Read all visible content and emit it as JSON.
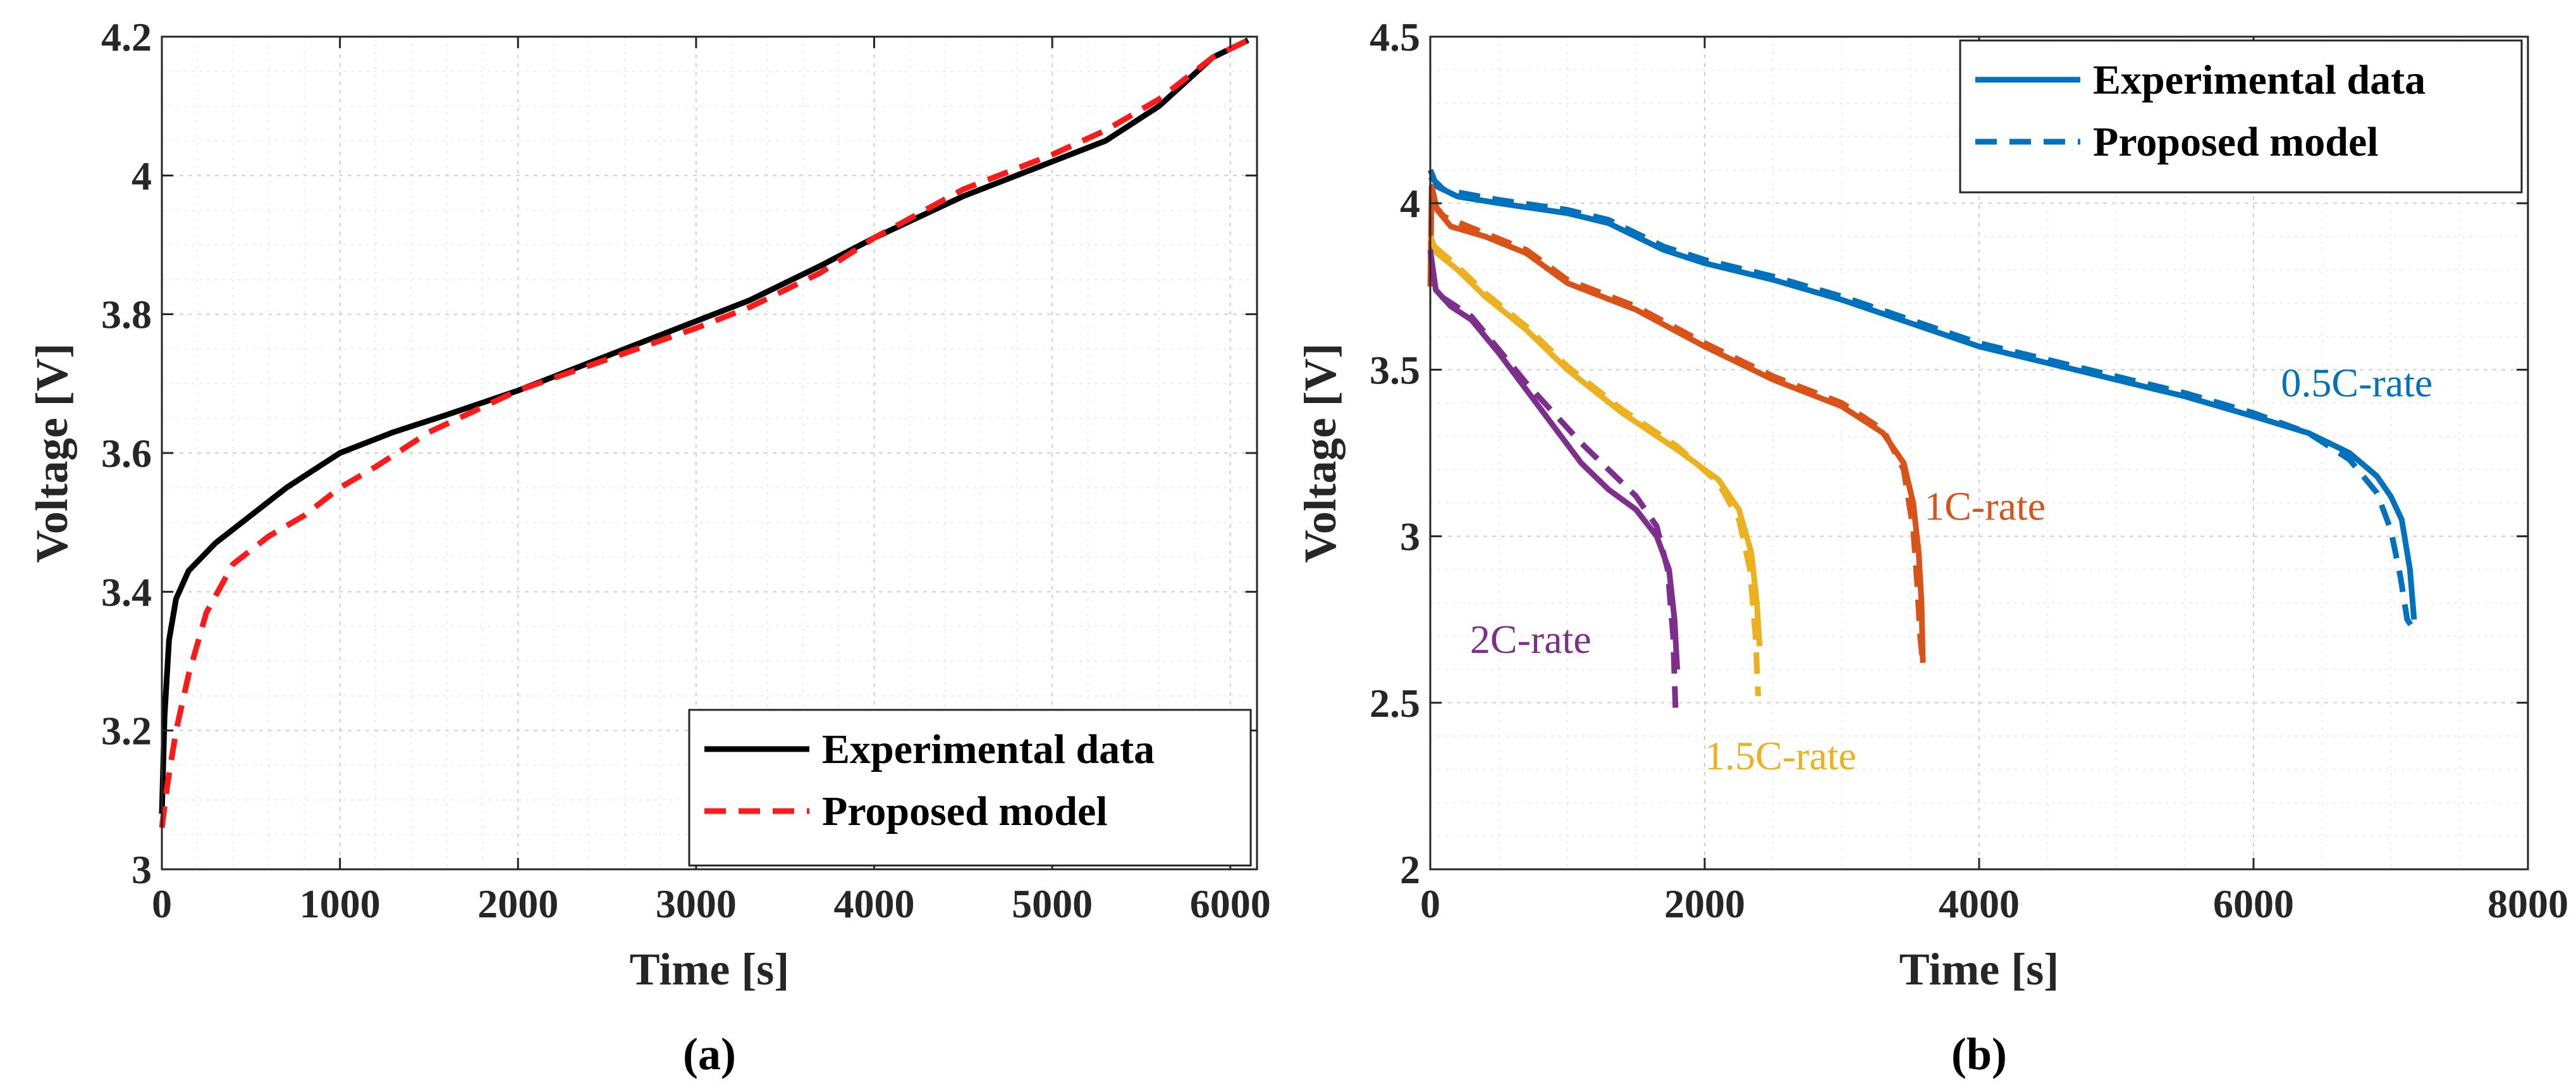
{
  "chart_data": [
    {
      "type": "line",
      "caption": "(a)",
      "xlabel": "Time [s]",
      "ylabel": "Voltage [V]",
      "xlim": [
        0,
        6150
      ],
      "ylim": [
        3.0,
        4.2
      ],
      "xticks": [
        0,
        1000,
        2000,
        3000,
        4000,
        5000,
        6000
      ],
      "yticks": [
        3.0,
        3.2,
        3.4,
        3.6,
        3.8,
        4.0,
        4.2
      ],
      "xtick_labels": [
        "0",
        "1000",
        "2000",
        "3000",
        "4000",
        "5000",
        "6000"
      ],
      "ytick_labels": [
        "3",
        "3.2",
        "3.4",
        "3.6",
        "3.8",
        "4",
        "4.2"
      ],
      "grid": true,
      "legend": {
        "position": "bottom-right",
        "entries": [
          "Experimental data",
          "Proposed model"
        ]
      },
      "series": [
        {
          "name": "Experimental data",
          "color": "#000000",
          "style": "solid",
          "points": [
            [
              0,
              3.08
            ],
            [
              15,
              3.22
            ],
            [
              40,
              3.33
            ],
            [
              80,
              3.39
            ],
            [
              150,
              3.43
            ],
            [
              300,
              3.47
            ],
            [
              500,
              3.51
            ],
            [
              700,
              3.55
            ],
            [
              1000,
              3.6
            ],
            [
              1300,
              3.63
            ],
            [
              1600,
              3.655
            ],
            [
              2000,
              3.69
            ],
            [
              2500,
              3.74
            ],
            [
              3000,
              3.79
            ],
            [
              3300,
              3.82
            ],
            [
              3700,
              3.87
            ],
            [
              4000,
              3.91
            ],
            [
              4500,
              3.97
            ],
            [
              5000,
              4.02
            ],
            [
              5300,
              4.05
            ],
            [
              5600,
              4.1
            ],
            [
              5900,
              4.17
            ],
            [
              6100,
              4.195
            ]
          ]
        },
        {
          "name": "Proposed model",
          "color": "#ff1a1a",
          "style": "dashed",
          "points": [
            [
              0,
              3.06
            ],
            [
              30,
              3.12
            ],
            [
              80,
              3.2
            ],
            [
              150,
              3.28
            ],
            [
              250,
              3.37
            ],
            [
              400,
              3.44
            ],
            [
              600,
              3.48
            ],
            [
              800,
              3.51
            ],
            [
              1000,
              3.55
            ],
            [
              1200,
              3.58
            ],
            [
              1500,
              3.63
            ],
            [
              2000,
              3.69
            ],
            [
              2500,
              3.735
            ],
            [
              3000,
              3.78
            ],
            [
              3300,
              3.81
            ],
            [
              3700,
              3.86
            ],
            [
              4000,
              3.91
            ],
            [
              4500,
              3.98
            ],
            [
              5000,
              4.03
            ],
            [
              5300,
              4.065
            ],
            [
              5600,
              4.11
            ],
            [
              5900,
              4.17
            ],
            [
              6100,
              4.195
            ]
          ]
        }
      ]
    },
    {
      "type": "line",
      "caption": "(b)",
      "xlabel": "Time [s]",
      "ylabel": "Voltage [V]",
      "xlim": [
        0,
        8000
      ],
      "ylim": [
        2.0,
        4.5
      ],
      "xticks": [
        0,
        2000,
        4000,
        6000,
        8000
      ],
      "yticks": [
        2.0,
        2.5,
        3.0,
        3.5,
        4.0,
        4.5
      ],
      "xtick_labels": [
        "0",
        "2000",
        "4000",
        "6000",
        "8000"
      ],
      "ytick_labels": [
        "2",
        "2.5",
        "3",
        "3.5",
        "4",
        "4.5"
      ],
      "grid": true,
      "legend": {
        "position": "top-right",
        "entries": [
          "Experimental data",
          "Proposed model"
        ],
        "color": "#0072bd"
      },
      "annotations": [
        {
          "text": "0.5C-rate",
          "x": 6200,
          "y": 3.42,
          "color": "#0072bd"
        },
        {
          "text": "1C-rate",
          "x": 3600,
          "y": 3.05,
          "color": "#d95319"
        },
        {
          "text": "1.5C-rate",
          "x": 2000,
          "y": 2.3,
          "color": "#edb120"
        },
        {
          "text": "2C-rate",
          "x": 290,
          "y": 2.65,
          "color": "#7e2f8e"
        }
      ],
      "series": [
        {
          "name": "0.5C-rate experimental",
          "color": "#0072bd",
          "style": "solid",
          "points": [
            [
              0,
              4.1
            ],
            [
              50,
              4.05
            ],
            [
              200,
              4.02
            ],
            [
              500,
              4.0
            ],
            [
              1000,
              3.97
            ],
            [
              1300,
              3.94
            ],
            [
              1700,
              3.86
            ],
            [
              2000,
              3.82
            ],
            [
              2500,
              3.77
            ],
            [
              3000,
              3.71
            ],
            [
              3500,
              3.64
            ],
            [
              4000,
              3.57
            ],
            [
              4500,
              3.52
            ],
            [
              5000,
              3.47
            ],
            [
              5500,
              3.42
            ],
            [
              6000,
              3.36
            ],
            [
              6400,
              3.31
            ],
            [
              6700,
              3.25
            ],
            [
              6900,
              3.18
            ],
            [
              7000,
              3.12
            ],
            [
              7080,
              3.05
            ],
            [
              7140,
              2.9
            ],
            [
              7170,
              2.75
            ]
          ]
        },
        {
          "name": "0.5C-rate model",
          "color": "#0072bd",
          "style": "dashed",
          "points": [
            [
              0,
              4.08
            ],
            [
              100,
              4.04
            ],
            [
              500,
              4.01
            ],
            [
              1000,
              3.98
            ],
            [
              1300,
              3.95
            ],
            [
              1700,
              3.87
            ],
            [
              2000,
              3.83
            ],
            [
              2500,
              3.78
            ],
            [
              3000,
              3.72
            ],
            [
              3500,
              3.65
            ],
            [
              4000,
              3.58
            ],
            [
              4500,
              3.53
            ],
            [
              5000,
              3.48
            ],
            [
              5500,
              3.43
            ],
            [
              6000,
              3.37
            ],
            [
              6400,
              3.31
            ],
            [
              6700,
              3.23
            ],
            [
              6900,
              3.13
            ],
            [
              7000,
              3.02
            ],
            [
              7070,
              2.88
            ],
            [
              7120,
              2.75
            ],
            [
              7170,
              2.72
            ]
          ]
        },
        {
          "name": "1C-rate experimental",
          "color": "#d95319",
          "style": "solid",
          "points": [
            [
              0,
              3.75
            ],
            [
              10,
              4.05
            ],
            [
              50,
              3.98
            ],
            [
              150,
              3.93
            ],
            [
              400,
              3.9
            ],
            [
              700,
              3.85
            ],
            [
              1000,
              3.76
            ],
            [
              1500,
              3.68
            ],
            [
              2000,
              3.57
            ],
            [
              2500,
              3.47
            ],
            [
              3000,
              3.39
            ],
            [
              3300,
              3.31
            ],
            [
              3450,
              3.22
            ],
            [
              3520,
              3.1
            ],
            [
              3560,
              2.95
            ],
            [
              3580,
              2.8
            ],
            [
              3590,
              2.62
            ]
          ]
        },
        {
          "name": "1C-rate model",
          "color": "#d95319",
          "style": "dashed",
          "points": [
            [
              20,
              4.0
            ],
            [
              100,
              3.96
            ],
            [
              400,
              3.91
            ],
            [
              700,
              3.86
            ],
            [
              1000,
              3.77
            ],
            [
              1500,
              3.69
            ],
            [
              2000,
              3.58
            ],
            [
              2500,
              3.48
            ],
            [
              3000,
              3.4
            ],
            [
              3300,
              3.32
            ],
            [
              3450,
              3.2
            ],
            [
              3520,
              3.02
            ],
            [
              3550,
              2.85
            ],
            [
              3570,
              2.7
            ],
            [
              3590,
              2.62
            ]
          ]
        },
        {
          "name": "1.5C-rate experimental",
          "color": "#edb120",
          "style": "solid",
          "points": [
            [
              0,
              3.9
            ],
            [
              50,
              3.85
            ],
            [
              200,
              3.8
            ],
            [
              400,
              3.72
            ],
            [
              700,
              3.62
            ],
            [
              1000,
              3.5
            ],
            [
              1400,
              3.37
            ],
            [
              1800,
              3.26
            ],
            [
              2100,
              3.17
            ],
            [
              2250,
              3.08
            ],
            [
              2340,
              2.95
            ],
            [
              2380,
              2.8
            ],
            [
              2400,
              2.67
            ]
          ]
        },
        {
          "name": "1.5C-rate model",
          "color": "#edb120",
          "style": "dashed",
          "points": [
            [
              30,
              3.87
            ],
            [
              200,
              3.81
            ],
            [
              400,
              3.73
            ],
            [
              700,
              3.63
            ],
            [
              1000,
              3.51
            ],
            [
              1400,
              3.38
            ],
            [
              1800,
              3.27
            ],
            [
              2100,
              3.16
            ],
            [
              2250,
              3.05
            ],
            [
              2330,
              2.9
            ],
            [
              2370,
              2.7
            ],
            [
              2390,
              2.52
            ]
          ]
        },
        {
          "name": "2C-rate experimental",
          "color": "#7e2f8e",
          "style": "solid",
          "points": [
            [
              0,
              3.86
            ],
            [
              40,
              3.74
            ],
            [
              150,
              3.69
            ],
            [
              300,
              3.65
            ],
            [
              500,
              3.55
            ],
            [
              700,
              3.44
            ],
            [
              900,
              3.33
            ],
            [
              1100,
              3.22
            ],
            [
              1300,
              3.14
            ],
            [
              1500,
              3.08
            ],
            [
              1650,
              3.0
            ],
            [
              1740,
              2.9
            ],
            [
              1780,
              2.75
            ],
            [
              1800,
              2.6
            ]
          ]
        },
        {
          "name": "2C-rate model",
          "color": "#7e2f8e",
          "style": "dashed",
          "points": [
            [
              80,
              3.72
            ],
            [
              300,
              3.66
            ],
            [
              500,
              3.56
            ],
            [
              700,
              3.46
            ],
            [
              900,
              3.37
            ],
            [
              1100,
              3.28
            ],
            [
              1300,
              3.2
            ],
            [
              1500,
              3.12
            ],
            [
              1650,
              3.03
            ],
            [
              1730,
              2.9
            ],
            [
              1770,
              2.7
            ],
            [
              1790,
              2.45
            ]
          ]
        }
      ]
    }
  ]
}
